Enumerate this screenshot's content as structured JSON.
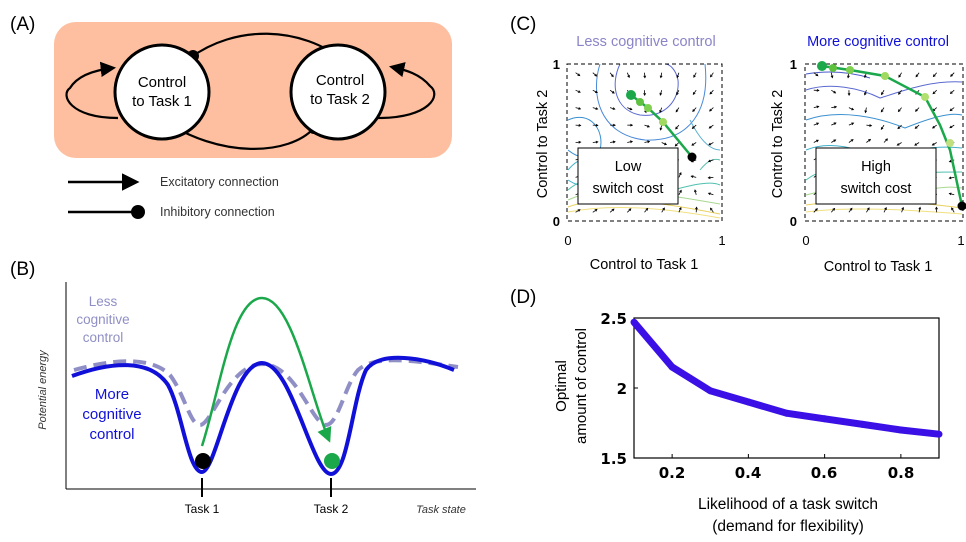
{
  "panels": {
    "a": {
      "label": "(A)",
      "node1": [
        "Control",
        "to Task 1"
      ],
      "node2": [
        "Control",
        "to Task 2"
      ],
      "legend_excitatory": "Excitatory connection",
      "legend_inhibitory": "Inhibitory connection",
      "colors": {
        "box": "#fdbf9f",
        "node": "#ffffff",
        "stroke": "#000000"
      }
    },
    "b": {
      "label": "(B)",
      "less_label": [
        "Less",
        "cognitive",
        "control"
      ],
      "more_label": [
        "More",
        "cognitive",
        "control"
      ],
      "y_label": "Potential energy",
      "x_label": "Task state",
      "x_ticks": [
        "Task 1",
        "Task 2"
      ],
      "colors": {
        "more": "#1010d8",
        "less": "#8f8fc6",
        "arrow": "#1aa84a",
        "ball_task1": "#000000",
        "ball_task2": "#1aa84a"
      }
    },
    "c": {
      "label": "(C)",
      "left": {
        "title": "Less cognitive control",
        "box": [
          "Low",
          "switch cost"
        ],
        "title_color": "#8a84c8"
      },
      "right": {
        "title": "More cognitive control",
        "box": [
          "High",
          "switch cost"
        ],
        "title_color": "#1010d8"
      },
      "x_label": "Control to Task 1",
      "y_label": "Control to Task 2",
      "tick_min": "0",
      "tick_max": "1"
    },
    "d": {
      "label": "(D)",
      "y_label": [
        "Optimal",
        "amount of control"
      ],
      "x_label": [
        "Likelihood of a task switch",
        "(demand for flexibility)"
      ],
      "y_ticks": [
        "2.5",
        "2",
        "1.5"
      ],
      "x_ticks": [
        "0.2",
        "0.4",
        "0.6",
        "0.8"
      ],
      "line_color": "#3a10e6"
    }
  },
  "chart_data": {
    "type": "line",
    "x": [
      0.1,
      0.2,
      0.3,
      0.4,
      0.5,
      0.6,
      0.7,
      0.8,
      0.9
    ],
    "series": [
      {
        "values": [
          2.47,
          2.15,
          1.98,
          1.9,
          1.82,
          1.78,
          1.74,
          1.7,
          1.67
        ]
      }
    ],
    "xlabel": "Likelihood of a task switch (demand for flexibility)",
    "ylabel": "Optimal amount of control",
    "xlim": [
      0.1,
      0.9
    ],
    "ylim": [
      1.5,
      2.5
    ],
    "grid": false
  }
}
